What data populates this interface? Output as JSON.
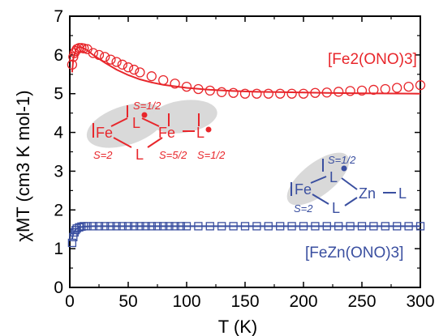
{
  "chart_data": {
    "type": "scatter",
    "xlabel": "T (K)",
    "ylabel": "χMT (cm3 K mol-1)",
    "xlim": [
      0,
      300
    ],
    "ylim": [
      0,
      7
    ],
    "xticks": [
      "0",
      "50",
      "100",
      "150",
      "200",
      "250",
      "300"
    ],
    "yticks": [
      "0",
      "1",
      "2",
      "3",
      "4",
      "5",
      "6",
      "7"
    ],
    "grid": false,
    "series": [
      {
        "name": "[Fe2(ONO)3]",
        "color": "#e8262b",
        "marker": "circle",
        "x": [
          2,
          3,
          4,
          5,
          6,
          8,
          10,
          12,
          15,
          20,
          25,
          30,
          35,
          40,
          45,
          50,
          55,
          60,
          70,
          80,
          90,
          100,
          110,
          120,
          130,
          140,
          150,
          160,
          170,
          180,
          190,
          200,
          210,
          220,
          230,
          240,
          250,
          260,
          270,
          280,
          290,
          300
        ],
        "y": [
          5.75,
          5.95,
          6.05,
          6.1,
          6.15,
          6.18,
          6.18,
          6.17,
          6.15,
          6.05,
          6.0,
          5.95,
          5.88,
          5.82,
          5.75,
          5.68,
          5.62,
          5.55,
          5.45,
          5.35,
          5.26,
          5.18,
          5.12,
          5.08,
          5.04,
          5.02,
          5.0,
          5.0,
          5.0,
          5.0,
          5.0,
          5.0,
          5.02,
          5.03,
          5.05,
          5.07,
          5.08,
          5.1,
          5.12,
          5.15,
          5.18,
          5.22
        ]
      },
      {
        "name": "fit",
        "color": "#e8262b",
        "marker": "line",
        "x": [
          2,
          3,
          5,
          7,
          10,
          15,
          20,
          30,
          40,
          50,
          60,
          70,
          80,
          90,
          100,
          120,
          140,
          160,
          180,
          200,
          220,
          250,
          300
        ],
        "y": [
          5.55,
          5.9,
          6.12,
          6.2,
          6.2,
          6.12,
          6.0,
          5.8,
          5.62,
          5.48,
          5.37,
          5.29,
          5.23,
          5.19,
          5.15,
          5.1,
          5.07,
          5.05,
          5.04,
          5.03,
          5.02,
          5.01,
          5.0
        ]
      },
      {
        "name": "[FeZn(ONO)3]",
        "color": "#3a4fa0",
        "marker": "square",
        "x": [
          2,
          3,
          4,
          5,
          6,
          8,
          10,
          12,
          15,
          20,
          25,
          30,
          35,
          40,
          45,
          50,
          55,
          60,
          65,
          70,
          75,
          80,
          85,
          90,
          95,
          100,
          110,
          120,
          130,
          140,
          150,
          160,
          170,
          180,
          190,
          200,
          210,
          220,
          230,
          240,
          250,
          260,
          270,
          280,
          290,
          300
        ],
        "y": [
          1.15,
          1.3,
          1.42,
          1.48,
          1.52,
          1.55,
          1.57,
          1.58,
          1.58,
          1.58,
          1.58,
          1.58,
          1.58,
          1.58,
          1.58,
          1.58,
          1.58,
          1.58,
          1.58,
          1.58,
          1.58,
          1.58,
          1.58,
          1.58,
          1.58,
          1.58,
          1.58,
          1.58,
          1.58,
          1.58,
          1.58,
          1.58,
          1.58,
          1.58,
          1.58,
          1.58,
          1.58,
          1.58,
          1.58,
          1.58,
          1.58,
          1.58,
          1.58,
          1.58,
          1.58,
          1.58
        ]
      },
      {
        "name": "fit",
        "color": "#3a4fa0",
        "marker": "line",
        "x": [
          2,
          3,
          5,
          8,
          12,
          20,
          40,
          100,
          200,
          300
        ],
        "y": [
          1.25,
          1.4,
          1.5,
          1.55,
          1.57,
          1.58,
          1.58,
          1.58,
          1.58,
          1.58
        ]
      }
    ],
    "annotations": {
      "fe2_label": "[Fe2(ONO)3]",
      "fezn_label": "[FeZn(ONO)3]",
      "fe2_scheme": {
        "fe_left": "Fe",
        "fe_right": "Fe",
        "l_top": "L",
        "l_bottom": "L",
        "l_right": "L",
        "s_top": "S=1/2",
        "s_fe_left": "S=2",
        "s_fe_right": "S=5/2",
        "s_l_right": "S=1/2"
      },
      "fezn_scheme": {
        "fe": "Fe",
        "zn": "Zn",
        "l_top": "L",
        "l_bottom": "L",
        "l_right": "L",
        "s_top": "S=1/2",
        "s_fe": "S=2"
      }
    }
  }
}
